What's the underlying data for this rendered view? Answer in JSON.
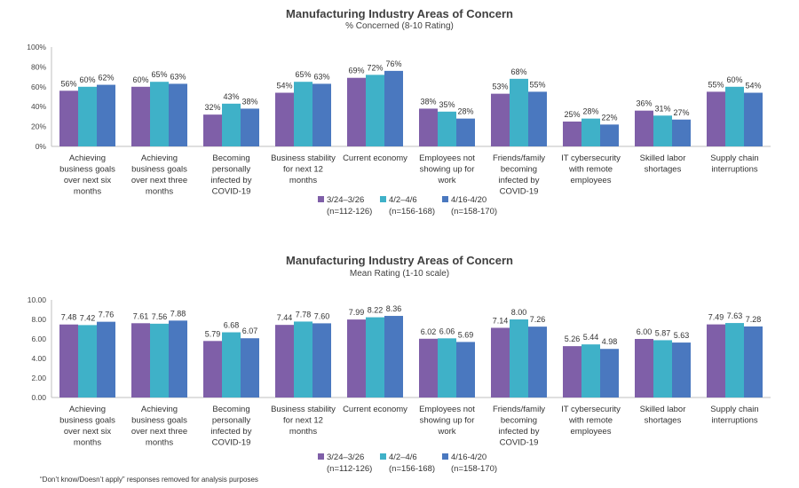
{
  "footnote": "“Don’t know/Doesn’t apply” responses removed for analysis purposes",
  "colors": [
    "#7f5fa8",
    "#3fb1c8",
    "#4a78bf"
  ],
  "legend": [
    {
      "line1": "3/24–3/26",
      "line2": "(n=112-126)"
    },
    {
      "line1": "4/2–4/6",
      "line2": "(n=156-168)"
    },
    {
      "line1": "4/16-4/20",
      "line2": "(n=158-170)"
    }
  ],
  "chart_data": [
    {
      "type": "bar",
      "title": "Manufacturing Industry Areas of Concern",
      "subtitle": "% Concerned (8-10 Rating)",
      "categories": [
        [
          "Achieving",
          "business goals",
          "over next six",
          "months"
        ],
        [
          "Achieving",
          "business goals",
          "over next three",
          "months"
        ],
        [
          "Becoming",
          "personally",
          "infected by",
          "COVID-19"
        ],
        [
          "Business stability",
          "for next 12",
          "months"
        ],
        [
          "Current economy"
        ],
        [
          "Employees not",
          "showing up for",
          "work"
        ],
        [
          "Friends/family",
          "becoming",
          "infected by",
          "COVID-19"
        ],
        [
          "IT cybersecurity",
          "with remote",
          "employees"
        ],
        [
          "Skilled labor",
          "shortages"
        ],
        [
          "Supply chain",
          "interruptions"
        ]
      ],
      "ylim": [
        0,
        100
      ],
      "yticks": [
        "0%",
        "20%",
        "40%",
        "60%",
        "80%",
        "100%"
      ],
      "series": [
        {
          "name": "3/24–3/26 (n=112-126)",
          "values": [
            56,
            60,
            32,
            54,
            69,
            38,
            53,
            25,
            36,
            55
          ],
          "labels": [
            "56%",
            "60%",
            "32%",
            "54%",
            "69%",
            "38%",
            "53%",
            "25%",
            "36%",
            "55%"
          ]
        },
        {
          "name": "4/2–4/6 (n=156-168)",
          "values": [
            60,
            65,
            43,
            65,
            72,
            35,
            68,
            28,
            31,
            60
          ],
          "labels": [
            "60%",
            "65%",
            "43%",
            "65%",
            "72%",
            "35%",
            "68%",
            "28%",
            "31%",
            "60%"
          ]
        },
        {
          "name": "4/16-4/20 (n=158-170)",
          "values": [
            62,
            63,
            38,
            63,
            76,
            28,
            55,
            22,
            27,
            54
          ],
          "labels": [
            "62%",
            "63%",
            "38%",
            "63%",
            "76%",
            "28%",
            "55%",
            "22%",
            "27%",
            "54%"
          ]
        }
      ],
      "legend_position": "bottom"
    },
    {
      "type": "bar",
      "title": "Manufacturing Industry Areas of Concern",
      "subtitle": "Mean Rating (1-10 scale)",
      "categories": [
        [
          "Achieving",
          "business goals",
          "over next six",
          "months"
        ],
        [
          "Achieving",
          "business goals",
          "over next three",
          "months"
        ],
        [
          "Becoming",
          "personally",
          "infected by",
          "COVID-19"
        ],
        [
          "Business stability",
          "for next 12",
          "months"
        ],
        [
          "Current economy"
        ],
        [
          "Employees not",
          "showing up for",
          "work"
        ],
        [
          "Friends/family",
          "becoming",
          "infected by",
          "COVID-19"
        ],
        [
          "IT cybersecurity",
          "with remote",
          "employees"
        ],
        [
          "Skilled labor",
          "shortages"
        ],
        [
          "Supply chain",
          "interruptions"
        ]
      ],
      "ylim": [
        0,
        10
      ],
      "yticks": [
        "0.00",
        "2.00",
        "4.00",
        "6.00",
        "8.00",
        "10.00"
      ],
      "series": [
        {
          "name": "3/24–3/26 (n=112-126)",
          "values": [
            7.48,
            7.61,
            5.79,
            7.44,
            7.99,
            6.02,
            7.14,
            5.26,
            6.0,
            7.49
          ],
          "labels": [
            "7.48",
            "7.61",
            "5.79",
            "7.44",
            "7.99",
            "6.02",
            "7.14",
            "5.26",
            "6.00",
            "7.49"
          ]
        },
        {
          "name": "4/2–4/6 (n=156-168)",
          "values": [
            7.42,
            7.56,
            6.68,
            7.78,
            8.22,
            6.06,
            8.0,
            5.44,
            5.87,
            7.63
          ],
          "labels": [
            "7.42",
            "7.56",
            "6.68",
            "7.78",
            "8.22",
            "6.06",
            "8.00",
            "5.44",
            "5.87",
            "7.63"
          ]
        },
        {
          "name": "4/16-4/20 (n=158-170)",
          "values": [
            7.76,
            7.88,
            6.07,
            7.6,
            8.36,
            5.69,
            7.26,
            4.98,
            5.63,
            7.28
          ],
          "labels": [
            "7.76",
            "7.88",
            "6.07",
            "7.60",
            "8.36",
            "5.69",
            "7.26",
            "4.98",
            "5.63",
            "7.28"
          ]
        }
      ],
      "legend_position": "bottom"
    }
  ]
}
